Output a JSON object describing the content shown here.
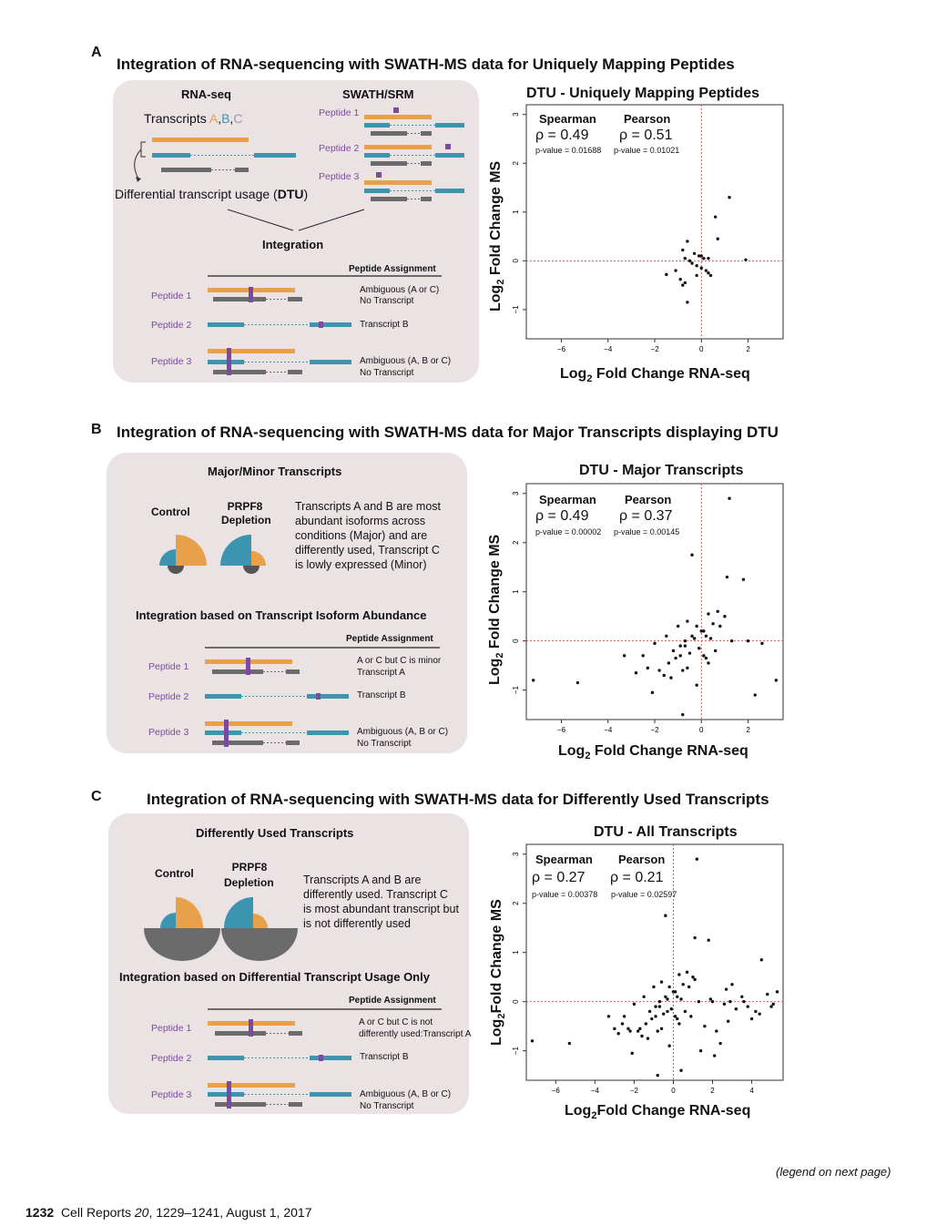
{
  "colors": {
    "orange": "#e8a04a",
    "blue": "#3b94b0",
    "grey": "#6b6b6b",
    "purple": "#7b4aa0",
    "panel_bg": "#ebe3e3",
    "ref_line": "#e05050"
  },
  "panel_a": {
    "letter": "A",
    "title": "Integration of RNA-sequencing with SWATH-MS data for Uniquely Mapping Peptides",
    "rnaseq_label": "RNA-seq",
    "swath_label": "SWATH/SRM",
    "transcripts_label": "Transcripts",
    "tA": "A",
    "tB": "B",
    "tC": "C",
    "dtu_label_pre": "Differential transcript usage (",
    "dtu_label_bold": "DTU",
    "dtu_label_post": ")",
    "swath_peptides": [
      "Peptide 1",
      "Peptide 2",
      "Peptide 3"
    ],
    "integration_label": "Integration",
    "peptide_assignment_header": "Peptide Assignment",
    "rows": [
      {
        "peptide": "Peptide 1",
        "assignment_1": "Ambiguous (A or C)",
        "assignment_2": "No Transcript"
      },
      {
        "peptide": "Peptide 2",
        "assignment_1": "Transcript B",
        "assignment_2": ""
      },
      {
        "peptide": "Peptide 3",
        "assignment_1": "Ambiguous (A, B or C)",
        "assignment_2": "No Transcript"
      }
    ]
  },
  "panel_b": {
    "letter": "B",
    "title": "Integration of RNA-sequencing with SWATH-MS data for Major Transcripts displaying DTU",
    "box_title": "Major/Minor Transcripts",
    "control_label": "Control",
    "prpf8_line1": "PRPF8",
    "prpf8_line2": "Depletion",
    "desc_lines": [
      "Transcripts A and B are most",
      "abundant isoforms across",
      "conditions (Major) and are",
      "differently used, Transcript C",
      "is lowly expressed (Minor)"
    ],
    "integration_title": "Integration based on Transcript Isoform Abundance",
    "peptide_assignment_header": "Peptide Assignment",
    "rows": [
      {
        "peptide": "Peptide 1",
        "assignment_1": "A or C but C is minor",
        "assignment_2": "Transcript A"
      },
      {
        "peptide": "Peptide 2",
        "assignment_1": "Transcript B",
        "assignment_2": ""
      },
      {
        "peptide": "Peptide 3",
        "assignment_1": "Ambiguous (A, B or C)",
        "assignment_2": "No Transcript"
      }
    ]
  },
  "panel_c": {
    "letter": "C",
    "title": "Integration of RNA-sequencing with SWATH-MS data for Differently Used Transcripts",
    "box_title": "Differently Used Transcripts",
    "control_label": "Control",
    "prpf8_line1": "PRPF8",
    "prpf8_line2": "Depletion",
    "desc_lines": [
      "Transcripts A and B are",
      "differently used. Transcript C",
      "is most abundant transcript but",
      "is not differently used"
    ],
    "integration_title": "Integration based on Differential Transcript Usage Only",
    "peptide_assignment_header": "Peptide Assignment",
    "rows": [
      {
        "peptide": "Peptide 1",
        "assignment_1": "A or C but C is not",
        "assignment_2": "differently used:Transcript A"
      },
      {
        "peptide": "Peptide 2",
        "assignment_1": "Transcript B",
        "assignment_2": ""
      },
      {
        "peptide": "Peptide 3",
        "assignment_1": "Ambiguous (A, B or C)",
        "assignment_2": "No Transcript"
      }
    ]
  },
  "chart_data": [
    {
      "type": "scatter",
      "title": "DTU - Uniquely Mapping Peptides",
      "xlabel": "Log2 Fold Change RNA-seq",
      "ylabel": "Log2 Fold Change MS",
      "xlim": [
        -7.5,
        3.5
      ],
      "ylim": [
        -1.6,
        3.2
      ],
      "xticks": [
        -6,
        -4,
        -2,
        0,
        2
      ],
      "yticks": [
        -1,
        0,
        1,
        2,
        3
      ],
      "xtick_labels": [
        "−6",
        "−4",
        "−2",
        "0",
        "2"
      ],
      "ytick_labels": [
        "−1",
        "0",
        "1",
        "2",
        "3"
      ],
      "ref_lines": {
        "x": 0,
        "y": 0
      },
      "stats": {
        "spearman_label": "Spearman",
        "pearson_label": "Pearson",
        "spearman_rho": "ρ = 0.49",
        "pearson_rho": "ρ = 0.51",
        "spearman_p": "p-value = 0.01688",
        "pearson_p": "p-value = 0.01021"
      },
      "x": [
        1.2,
        0.6,
        0.7,
        -0.8,
        -0.6,
        -0.3,
        -0.1,
        0.1,
        0.3,
        -1.5,
        1.9,
        -0.2,
        -0.5,
        0.2,
        0.0,
        -1.1,
        -0.9,
        -0.7,
        -0.8,
        0.3,
        0.4,
        -0.4,
        -0.6,
        -0.2,
        0.0,
        -0.7
      ],
      "y": [
        1.3,
        0.9,
        0.45,
        0.22,
        0.4,
        0.15,
        0.1,
        0.05,
        0.05,
        -0.28,
        0.02,
        -0.1,
        0.0,
        -0.2,
        -0.15,
        -0.2,
        -0.38,
        -0.45,
        -0.5,
        -0.25,
        -0.3,
        -0.05,
        -0.85,
        -0.3,
        0.1,
        0.05
      ]
    },
    {
      "type": "scatter",
      "title": "DTU - Major Transcripts",
      "xlabel": "Log2 Fold Change RNA-seq",
      "ylabel": "Log2 Fold Change MS",
      "xlim": [
        -7.5,
        3.5
      ],
      "ylim": [
        -1.6,
        3.2
      ],
      "xticks": [
        -6,
        -4,
        -2,
        0,
        2
      ],
      "yticks": [
        -1,
        0,
        1,
        2,
        3
      ],
      "xtick_labels": [
        "−6",
        "−4",
        "−2",
        "0",
        "2"
      ],
      "ytick_labels": [
        "−1",
        "0",
        "1",
        "2",
        "3"
      ],
      "ref_lines": {
        "x": 0,
        "y": 0
      },
      "stats": {
        "spearman_label": "Spearman",
        "pearson_label": "Pearson",
        "spearman_rho": "ρ = 0.49",
        "pearson_rho": "ρ = 0.37",
        "spearman_p": "p-value = 0.00002",
        "pearson_p": "p-value = 0.00145"
      },
      "x": [
        1.2,
        -0.4,
        1.1,
        1.8,
        3.2,
        2.3,
        -7.2,
        -5.3,
        -0.8,
        2.6,
        2.0,
        0.3,
        0.7,
        1.0,
        0.5,
        -0.6,
        -0.2,
        0.1,
        -1.0,
        -1.5,
        -2.0,
        -2.5,
        -1.2,
        -0.9,
        -0.7,
        -0.3,
        0.2,
        0.4,
        0.8,
        1.3,
        -0.5,
        -1.8,
        -2.8,
        -3.3,
        -2.3,
        -1.4,
        -0.8,
        -0.1,
        0.1,
        0.3,
        -0.6,
        -1.1,
        -1.6,
        -2.1,
        0.0,
        -0.4,
        0.6,
        -0.9,
        -1.3,
        -0.2,
        0.2,
        -0.7
      ],
      "y": [
        2.9,
        1.75,
        1.3,
        1.25,
        -0.8,
        -1.1,
        -0.8,
        -0.85,
        -1.5,
        -0.05,
        0.0,
        0.55,
        0.6,
        0.5,
        0.35,
        0.4,
        0.3,
        0.2,
        0.3,
        0.1,
        -0.05,
        -0.3,
        -0.2,
        -0.3,
        -0.1,
        0.05,
        0.1,
        0.05,
        0.3,
        0.0,
        -0.25,
        -0.6,
        -0.65,
        -0.3,
        -0.55,
        -0.45,
        -0.6,
        -0.15,
        -0.3,
        -0.45,
        -0.55,
        -0.35,
        -0.7,
        -1.05,
        0.2,
        0.1,
        -0.2,
        -0.1,
        -0.75,
        -0.9,
        -0.35,
        0.0
      ]
    },
    {
      "type": "scatter",
      "title": "DTU - All Transcripts",
      "xlabel": "Log2 Fold Change RNA-seq",
      "ylabel": "Log2 Fold Change MS",
      "xlim": [
        -7.5,
        5.6
      ],
      "ylim": [
        -1.6,
        3.2
      ],
      "xticks": [
        -6,
        -4,
        -2,
        0,
        2,
        4
      ],
      "yticks": [
        -1,
        0,
        1,
        2,
        3
      ],
      "xtick_labels": [
        "−6",
        "−4",
        "−2",
        "0",
        "2",
        "4"
      ],
      "ytick_labels": [
        "−1",
        "0",
        "1",
        "2",
        "3"
      ],
      "ref_lines": {
        "x": 0,
        "y": 0
      },
      "stats": {
        "spearman_label": "Spearman",
        "pearson_label": "Pearson",
        "spearman_rho": "ρ = 0.27",
        "pearson_rho": "ρ = 0.21",
        "spearman_p": "p-value = 0.00378",
        "pearson_p": "p-value = 0.02597"
      },
      "x": [
        1.2,
        -0.4,
        1.1,
        1.8,
        4.5,
        5.3,
        5.0,
        -7.2,
        -5.3,
        -0.8,
        2.6,
        2.0,
        0.3,
        0.7,
        1.0,
        0.5,
        -0.6,
        -0.2,
        0.1,
        -1.0,
        -1.5,
        -2.0,
        -2.5,
        -1.2,
        -0.9,
        -0.7,
        -0.3,
        0.2,
        0.4,
        0.8,
        1.3,
        -0.5,
        -1.8,
        -2.8,
        -3.3,
        -2.3,
        -1.4,
        -0.8,
        -0.1,
        0.1,
        0.3,
        -0.6,
        -1.1,
        -1.6,
        -2.1,
        0.0,
        -0.4,
        0.6,
        -0.9,
        -1.3,
        -0.2,
        0.2,
        -0.7,
        3.0,
        3.5,
        4.2,
        2.8,
        2.2,
        3.8,
        4.8,
        2.4,
        1.6,
        0.9,
        3.2,
        4.0,
        1.9,
        2.7,
        5.1,
        -2.6,
        -3.0,
        1.4,
        2.1,
        3.6,
        4.4,
        0.4,
        -1.7,
        -2.2,
        1.1,
        2.9,
        -0.3
      ],
      "y": [
        2.9,
        1.75,
        1.3,
        1.25,
        0.85,
        0.2,
        -0.1,
        -0.8,
        -0.85,
        -1.5,
        -0.05,
        0.0,
        0.55,
        0.6,
        0.5,
        0.35,
        0.4,
        0.3,
        0.2,
        0.3,
        0.1,
        -0.05,
        -0.3,
        -0.2,
        -0.3,
        -0.1,
        0.05,
        0.1,
        0.05,
        0.3,
        0.0,
        -0.25,
        -0.6,
        -0.65,
        -0.3,
        -0.55,
        -0.45,
        -0.6,
        -0.15,
        -0.3,
        -0.45,
        -0.55,
        -0.35,
        -0.7,
        -1.05,
        0.2,
        0.1,
        -0.2,
        -0.1,
        -0.75,
        -0.9,
        -0.35,
        0.0,
        0.35,
        0.1,
        -0.2,
        -0.4,
        -0.6,
        -0.1,
        0.15,
        -0.85,
        -0.5,
        -0.3,
        -0.15,
        -0.35,
        0.05,
        0.25,
        -0.05,
        -0.45,
        -0.55,
        -1.0,
        -1.1,
        0.0,
        -0.25,
        -1.4,
        -0.55,
        -0.6,
        0.45,
        0.0,
        -0.2
      ]
    }
  ],
  "footer": {
    "legend_note": "(legend on next page)",
    "page_number": "1232",
    "journal_pre": "Cell Reports ",
    "journal_vol": "20",
    "journal_post": ", 1229–1241, August 1, 2017"
  }
}
